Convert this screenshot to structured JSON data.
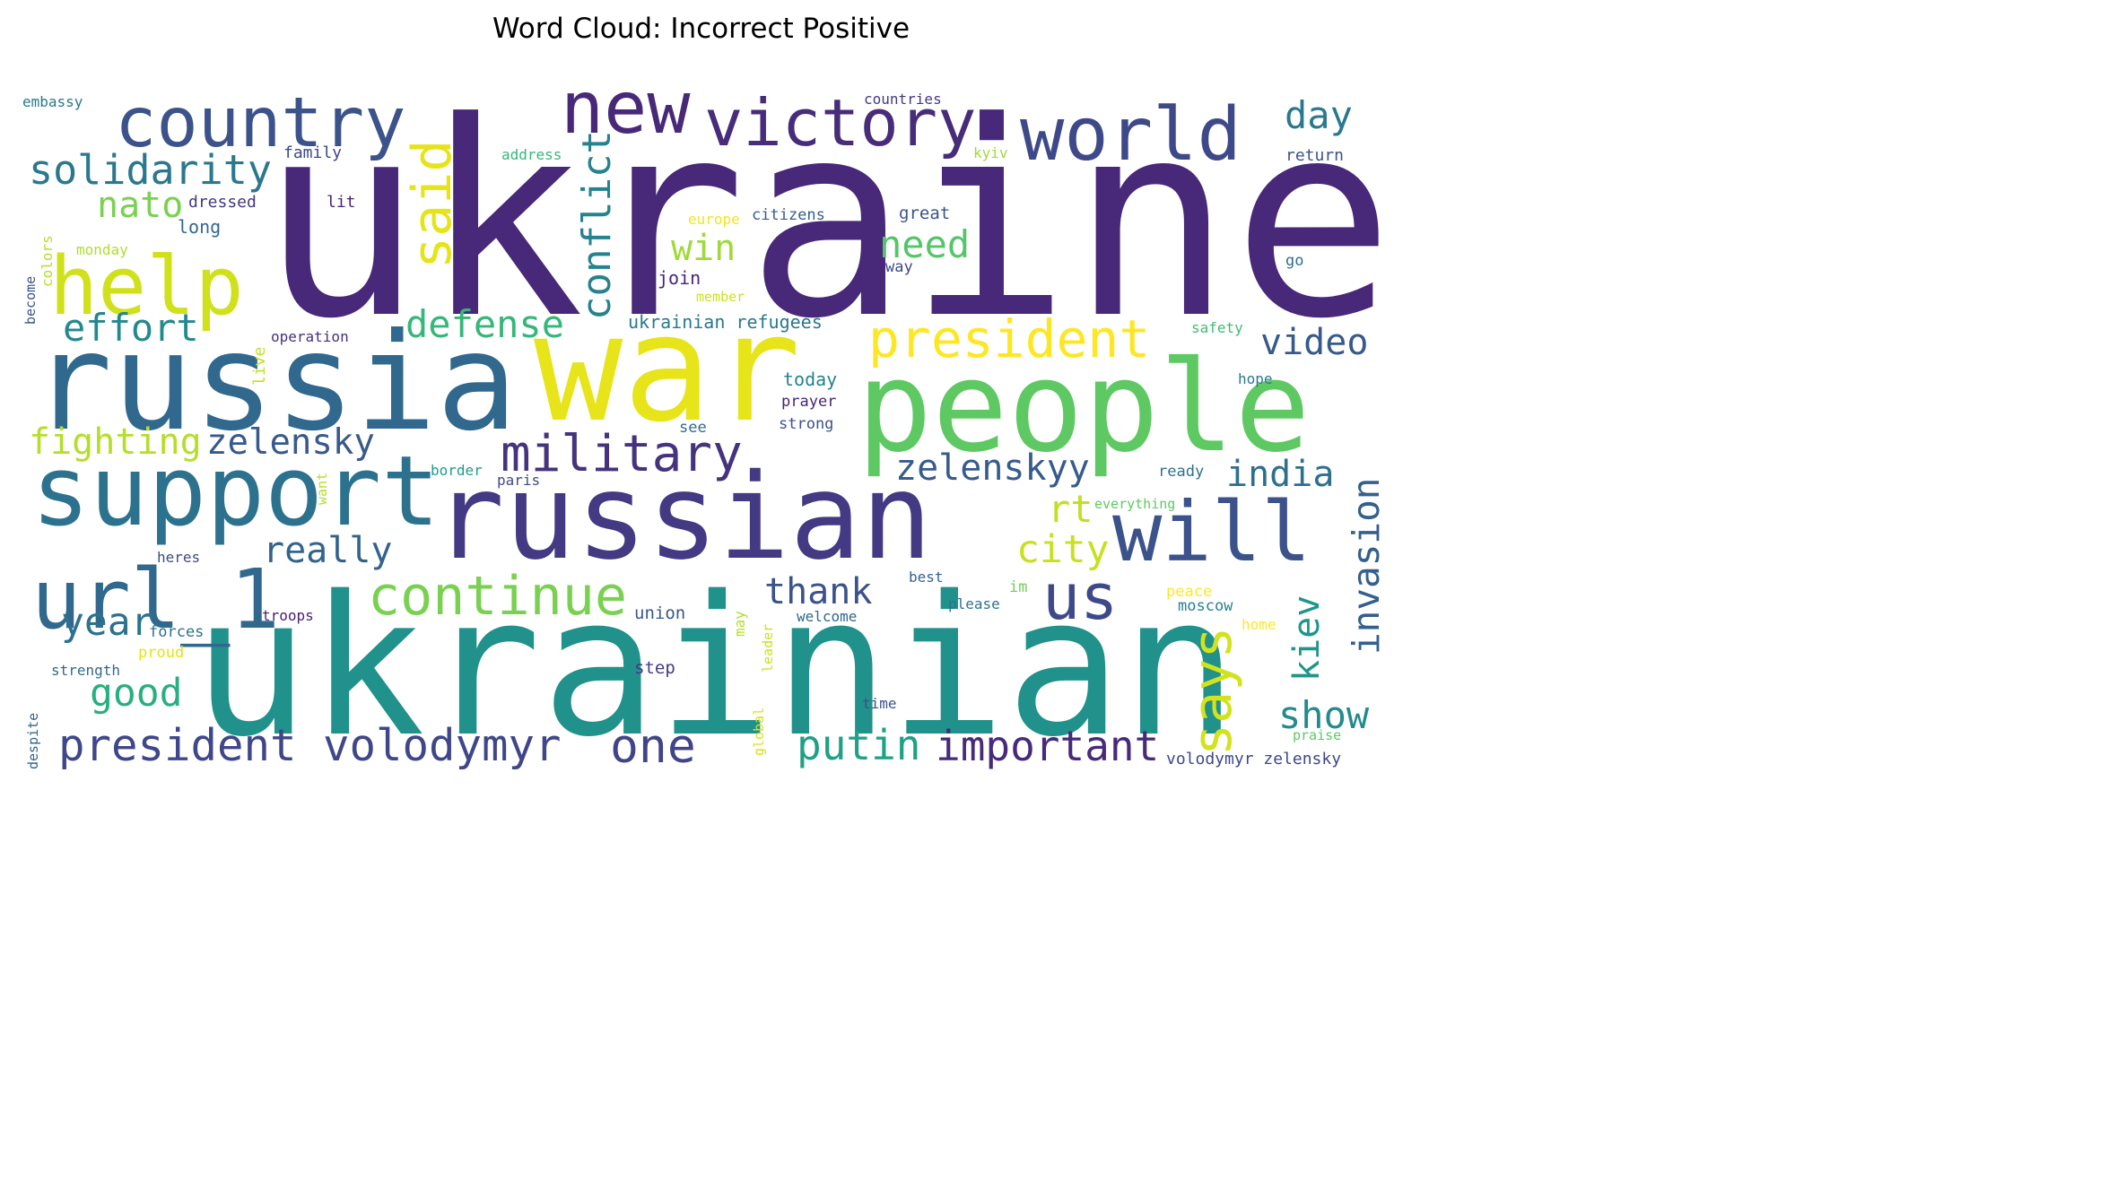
{
  "chart_data": {
    "type": "wordcloud",
    "title": "Word Cloud: Incorrect Positive",
    "words": [
      {
        "text": "ukraine",
        "weight": 100,
        "color": "#482878"
      },
      {
        "text": "ukrainian",
        "weight": 92,
        "color": "#21918c"
      },
      {
        "text": "war",
        "weight": 72,
        "color": "#e7e419"
      },
      {
        "text": "russia",
        "weight": 70,
        "color": "#31688e"
      },
      {
        "text": "people",
        "weight": 68,
        "color": "#5ec962"
      },
      {
        "text": "russian",
        "weight": 66,
        "color": "#443983"
      },
      {
        "text": "support",
        "weight": 57,
        "color": "#2c728e"
      },
      {
        "text": "url_1",
        "weight": 46,
        "color": "#31688e"
      },
      {
        "text": "help",
        "weight": 45,
        "color": "#d0e11c"
      },
      {
        "text": "will",
        "weight": 45,
        "color": "#3b528b"
      },
      {
        "text": "world",
        "weight": 40,
        "color": "#3e4989"
      },
      {
        "text": "country",
        "weight": 39,
        "color": "#3b528b"
      },
      {
        "text": "new",
        "weight": 39,
        "color": "#482878"
      },
      {
        "text": "victory",
        "weight": 36,
        "color": "#472c7a"
      },
      {
        "text": "us",
        "weight": 35,
        "color": "#3e4989"
      },
      {
        "text": "president",
        "weight": 30,
        "color": "#fde725"
      },
      {
        "text": "continue",
        "weight": 30,
        "color": "#7ad151"
      },
      {
        "text": "said",
        "weight": 29,
        "color": "#e5e419"
      },
      {
        "text": "says",
        "weight": 29,
        "color": "#d2e21b"
      },
      {
        "text": "military",
        "weight": 28,
        "color": "#46337e"
      },
      {
        "text": "president volodymyr",
        "weight": 26,
        "color": "#3f4788"
      },
      {
        "text": "one",
        "weight": 26,
        "color": "#414487"
      },
      {
        "text": "conflict",
        "weight": 24,
        "color": "#26828e"
      },
      {
        "text": "important",
        "weight": 24,
        "color": "#472a7a"
      },
      {
        "text": "solidarity",
        "weight": 23,
        "color": "#2a788e"
      },
      {
        "text": "defense",
        "weight": 23,
        "color": "#35b779"
      },
      {
        "text": "putin",
        "weight": 23,
        "color": "#1fa187"
      },
      {
        "text": "invasion",
        "weight": 23,
        "color": "#355f8d"
      },
      {
        "text": "day",
        "weight": 22,
        "color": "#2a788e"
      },
      {
        "text": "effort",
        "weight": 22,
        "color": "#23898e"
      },
      {
        "text": "need",
        "weight": 22,
        "color": "#54c568"
      },
      {
        "text": "zelenskyy",
        "weight": 22,
        "color": "#365c8d"
      },
      {
        "text": "nato",
        "weight": 21,
        "color": "#7ad151"
      },
      {
        "text": "video",
        "weight": 21,
        "color": "#38598c"
      },
      {
        "text": "fighting",
        "weight": 21,
        "color": "#b5de2b"
      },
      {
        "text": "zelensky",
        "weight": 21,
        "color": "#38598c"
      },
      {
        "text": "win",
        "weight": 21,
        "color": "#9fda3a"
      },
      {
        "text": "good",
        "weight": 21,
        "color": "#29af7f"
      },
      {
        "text": "really",
        "weight": 20,
        "color": "#33638d"
      },
      {
        "text": "year",
        "weight": 20,
        "color": "#2c728e"
      },
      {
        "text": "india",
        "weight": 20,
        "color": "#2d708e"
      },
      {
        "text": "rt",
        "weight": 20,
        "color": "#c2df23"
      },
      {
        "text": "city",
        "weight": 20,
        "color": "#c8e020"
      },
      {
        "text": "thank",
        "weight": 20,
        "color": "#3b528b"
      },
      {
        "text": "kiev",
        "weight": 20,
        "color": "#1f968b"
      },
      {
        "text": "show",
        "weight": 20,
        "color": "#238a8d"
      },
      {
        "text": "embassy",
        "weight": 8,
        "color": "#2a788e"
      },
      {
        "text": "countries",
        "weight": 8,
        "color": "#443983"
      },
      {
        "text": "family",
        "weight": 8,
        "color": "#3f4788"
      },
      {
        "text": "address",
        "weight": 8,
        "color": "#35b779"
      },
      {
        "text": "kyiv",
        "weight": 8,
        "color": "#a0da39"
      },
      {
        "text": "return",
        "weight": 8,
        "color": "#3b528b"
      },
      {
        "text": "dressed",
        "weight": 8,
        "color": "#453781"
      },
      {
        "text": "lit",
        "weight": 8,
        "color": "#482576"
      },
      {
        "text": "europe",
        "weight": 8,
        "color": "#f1e51d"
      },
      {
        "text": "citizens",
        "weight": 8,
        "color": "#365c8d"
      },
      {
        "text": "great",
        "weight": 8,
        "color": "#3b528b"
      },
      {
        "text": "long",
        "weight": 8,
        "color": "#31688e"
      },
      {
        "text": "monday",
        "weight": 8,
        "color": "#b0dd2f"
      },
      {
        "text": "colors",
        "weight": 8,
        "color": "#b5de2b"
      },
      {
        "text": "way",
        "weight": 8,
        "color": "#3e4989"
      },
      {
        "text": "go",
        "weight": 8,
        "color": "#2d708e"
      },
      {
        "text": "join",
        "weight": 8,
        "color": "#482576"
      },
      {
        "text": "member",
        "weight": 8,
        "color": "#cde11d"
      },
      {
        "text": "become",
        "weight": 8,
        "color": "#3b528b"
      },
      {
        "text": "ukrainian refugees",
        "weight": 10,
        "color": "#2a788e"
      },
      {
        "text": "operation",
        "weight": 8,
        "color": "#46307e"
      },
      {
        "text": "safety",
        "weight": 8,
        "color": "#3fbc73"
      },
      {
        "text": "live",
        "weight": 8,
        "color": "#c2df23"
      },
      {
        "text": "today",
        "weight": 9,
        "color": "#26828e"
      },
      {
        "text": "hope",
        "weight": 8,
        "color": "#2a788e"
      },
      {
        "text": "prayer",
        "weight": 8,
        "color": "#482576"
      },
      {
        "text": "see",
        "weight": 8,
        "color": "#2f6c8e"
      },
      {
        "text": "strong",
        "weight": 8,
        "color": "#3b528b"
      },
      {
        "text": "border",
        "weight": 8,
        "color": "#1f9e89"
      },
      {
        "text": "want",
        "weight": 8,
        "color": "#b5de2b"
      },
      {
        "text": "paris",
        "weight": 8,
        "color": "#3e4989"
      },
      {
        "text": "ready",
        "weight": 8,
        "color": "#2c728e"
      },
      {
        "text": "everything",
        "weight": 8,
        "color": "#5ec962"
      },
      {
        "text": "heres",
        "weight": 8,
        "color": "#3e4989"
      },
      {
        "text": "best",
        "weight": 8,
        "color": "#33638d"
      },
      {
        "text": "im",
        "weight": 8,
        "color": "#6ece58"
      },
      {
        "text": "peace",
        "weight": 8,
        "color": "#fde725"
      },
      {
        "text": "moscow",
        "weight": 8,
        "color": "#26828e"
      },
      {
        "text": "please",
        "weight": 8,
        "color": "#2c728e"
      },
      {
        "text": "forces",
        "weight": 8,
        "color": "#2c728e"
      },
      {
        "text": "troops",
        "weight": 8,
        "color": "#482173"
      },
      {
        "text": "union",
        "weight": 8,
        "color": "#38598c"
      },
      {
        "text": "may",
        "weight": 8,
        "color": "#b5de2b"
      },
      {
        "text": "leader",
        "weight": 8,
        "color": "#c8e020"
      },
      {
        "text": "welcome",
        "weight": 8,
        "color": "#31688e"
      },
      {
        "text": "home",
        "weight": 8,
        "color": "#fde725"
      },
      {
        "text": "proud",
        "weight": 8,
        "color": "#e2e418"
      },
      {
        "text": "strength",
        "weight": 8,
        "color": "#31688e"
      },
      {
        "text": "step",
        "weight": 8,
        "color": "#443983"
      },
      {
        "text": "time",
        "weight": 8,
        "color": "#3b528b"
      },
      {
        "text": "despite",
        "weight": 8,
        "color": "#33638d"
      },
      {
        "text": "global",
        "weight": 8,
        "color": "#d8e219"
      },
      {
        "text": "praise",
        "weight": 8,
        "color": "#5ec962"
      },
      {
        "text": "volodymyr zelensky",
        "weight": 9,
        "color": "#3f4788"
      }
    ]
  }
}
